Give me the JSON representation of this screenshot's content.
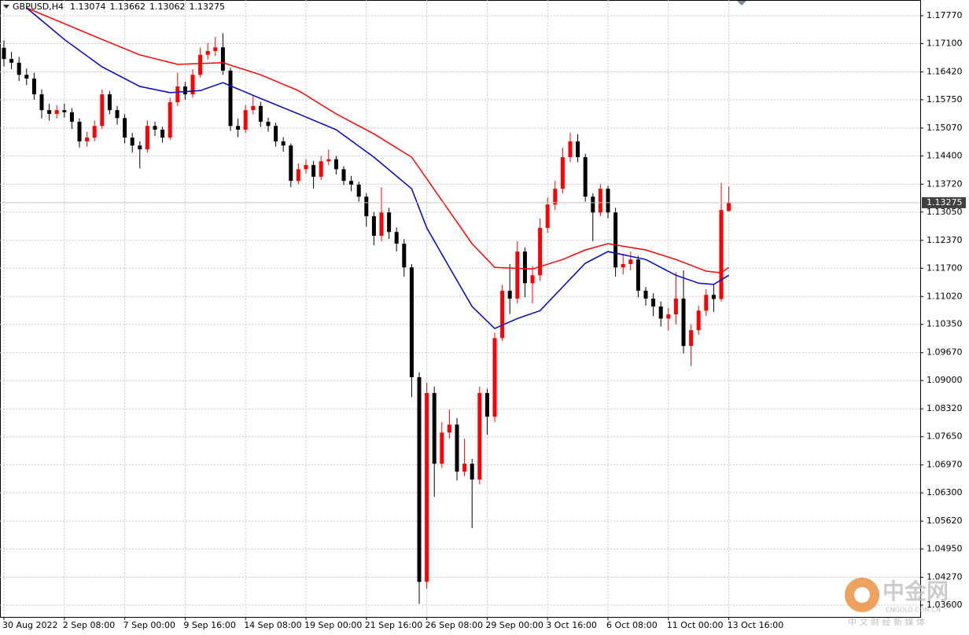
{
  "chart_data": {
    "type": "candlestick",
    "symbol": "GBPUSD,H4",
    "ylim": [
      1.03317,
      1.18148
    ],
    "yticks": [
      {
        "value": 1.1777,
        "label": "1.17770"
      },
      {
        "value": 1.171,
        "label": "1.17100"
      },
      {
        "value": 1.1642,
        "label": "1.16420"
      },
      {
        "value": 1.1575,
        "label": "1.15750"
      },
      {
        "value": 1.1507,
        "label": "1.15070"
      },
      {
        "value": 1.144,
        "label": "1.14400"
      },
      {
        "value": 1.1372,
        "label": "1.13720"
      },
      {
        "value": 1.1305,
        "label": "1.13050"
      },
      {
        "value": 1.1237,
        "label": "1.12370"
      },
      {
        "value": 1.117,
        "label": "1.11700"
      },
      {
        "value": 1.1102,
        "label": "1.11020"
      },
      {
        "value": 1.1035,
        "label": "1.10350"
      },
      {
        "value": 1.0967,
        "label": "1.09670"
      },
      {
        "value": 1.09,
        "label": "1.09000"
      },
      {
        "value": 1.0832,
        "label": "1.08320"
      },
      {
        "value": 1.0765,
        "label": "1.07650"
      },
      {
        "value": 1.0697,
        "label": "1.06970"
      },
      {
        "value": 1.063,
        "label": "1.06300"
      },
      {
        "value": 1.0562,
        "label": "1.05620"
      },
      {
        "value": 1.0495,
        "label": "1.04950"
      },
      {
        "value": 1.0427,
        "label": "1.04270"
      },
      {
        "value": 1.036,
        "label": "1.03600"
      }
    ],
    "grid": true,
    "up_color": "#ff0000",
    "down_color": "#000000",
    "categories": [
      "30 Aug 2022",
      null,
      null,
      null,
      null,
      null,
      null,
      null,
      "2 Sep 08:00",
      null,
      null,
      null,
      null,
      null,
      null,
      null,
      "7 Sep 00:00",
      null,
      null,
      null,
      null,
      null,
      null,
      null,
      "9 Sep 16:00",
      null,
      null,
      null,
      null,
      null,
      null,
      null,
      "14 Sep 08:00",
      null,
      null,
      null,
      null,
      null,
      null,
      null,
      "19 Sep 00:00",
      null,
      null,
      null,
      null,
      null,
      null,
      null,
      "21 Sep 16:00",
      null,
      null,
      null,
      null,
      null,
      null,
      null,
      "26 Sep 08:00",
      null,
      null,
      null,
      null,
      null,
      null,
      null,
      "29 Sep 00:00",
      null,
      null,
      null,
      null,
      null,
      null,
      null,
      "3 Oct 16:00",
      null,
      null,
      null,
      null,
      null,
      null,
      null,
      "6 Oct 08:00",
      null,
      null,
      null,
      null,
      null,
      null,
      null,
      "11 Oct 00:00",
      null,
      null,
      null,
      null,
      null,
      null,
      null,
      "13 Oct 16:00"
    ],
    "open": [
      1.17,
      1.1673,
      1.1664,
      1.1635,
      1.1626,
      1.1588,
      1.155,
      1.1541,
      1.155,
      1.1545,
      1.1522,
      1.1475,
      1.1484,
      1.1512,
      1.1588,
      1.155,
      1.1531,
      1.1484,
      1.1465,
      1.1456,
      1.1512,
      1.1503,
      1.1484,
      1.1569,
      1.1607,
      1.1588,
      1.1635,
      1.1683,
      1.1692,
      1.1701,
      1.1645,
      1.1512,
      1.1503,
      1.155,
      1.156,
      1.1522,
      1.1512,
      1.1475,
      1.1465,
      1.138,
      1.1408,
      1.1418,
      1.139,
      1.1427,
      1.1432,
      1.1408,
      1.138,
      1.1371,
      1.1342,
      1.1295,
      1.1248,
      1.1304,
      1.1257,
      1.1229,
      1.1172,
      1.0908,
      1.0416,
      1.087,
      1.07,
      1.0775,
      1.0794,
      1.0681,
      1.07,
      1.0662,
      1.087,
      1.0813,
      1.1002,
      1.1116,
      1.1097,
      1.121,
      1.1134,
      1.1153,
      1.1267,
      1.1323,
      1.1361,
      1.1437,
      1.1475,
      1.1437,
      1.1342,
      1.1304,
      1.1361,
      1.1304,
      1.1172,
      1.118,
      1.1191,
      1.1116,
      1.1097,
      1.1078,
      1.1049,
      1.1059,
      1.1097,
      1.0983,
      1.1021,
      1.1068,
      1.1106,
      1.1096,
      1.13074
    ],
    "high": [
      1.1718,
      1.169,
      1.1678,
      1.165,
      1.164,
      1.16,
      1.1565,
      1.1562,
      1.1566,
      1.1555,
      1.153,
      1.1498,
      1.1525,
      1.16,
      1.1596,
      1.156,
      1.154,
      1.1495,
      1.1475,
      1.1525,
      1.1522,
      1.151,
      1.158,
      1.164,
      1.1618,
      1.1648,
      1.17,
      1.1712,
      1.1726,
      1.1735,
      1.1652,
      1.153,
      1.1562,
      1.1585,
      1.157,
      1.1532,
      1.152,
      1.1485,
      1.147,
      1.1422,
      1.1432,
      1.1428,
      1.144,
      1.1455,
      1.144,
      1.1415,
      1.1392,
      1.1378,
      1.135,
      1.1305,
      1.1365,
      1.1315,
      1.1268,
      1.124,
      1.118,
      1.092,
      1.0895,
      1.0885,
      1.08,
      1.083,
      1.081,
      1.076,
      1.0712,
      1.0885,
      1.088,
      1.1015,
      1.113,
      1.118,
      1.1235,
      1.122,
      1.1175,
      1.129,
      1.134,
      1.138,
      1.146,
      1.1495,
      1.1492,
      1.1445,
      1.135,
      1.1372,
      1.1368,
      1.1315,
      1.1205,
      1.121,
      1.12,
      1.1125,
      1.111,
      1.109,
      1.1075,
      1.116,
      1.1165,
      1.1035,
      1.108,
      1.112,
      1.113,
      1.1375,
      1.13662
    ],
    "low": [
      1.1655,
      1.1648,
      1.162,
      1.161,
      1.1575,
      1.153,
      1.1525,
      1.153,
      1.1532,
      1.1505,
      1.146,
      1.1462,
      1.1475,
      1.1505,
      1.154,
      1.1515,
      1.147,
      1.1448,
      1.141,
      1.1448,
      1.1488,
      1.1472,
      1.1478,
      1.156,
      1.1575,
      1.158,
      1.1628,
      1.1672,
      1.168,
      1.1635,
      1.15,
      1.1485,
      1.1495,
      1.154,
      1.151,
      1.1498,
      1.1462,
      1.145,
      1.1365,
      1.1372,
      1.1398,
      1.1362,
      1.1382,
      1.1418,
      1.1395,
      1.137,
      1.1355,
      1.133,
      1.127,
      1.1225,
      1.1235,
      1.124,
      1.121,
      1.115,
      1.086,
      1.0363,
      1.04,
      1.062,
      1.069,
      1.076,
      1.066,
      1.067,
      1.0545,
      1.065,
      1.077,
      1.08,
      1.0995,
      1.106,
      1.1085,
      1.11,
      1.1085,
      1.114,
      1.1255,
      1.131,
      1.135,
      1.1425,
      1.1425,
      1.133,
      1.1235,
      1.1295,
      1.129,
      1.115,
      1.1155,
      1.1165,
      1.11,
      1.108,
      1.1055,
      1.103,
      1.102,
      1.1035,
      1.0965,
      1.0935,
      1.101,
      1.1055,
      1.1065,
      1.109,
      1.13062
    ],
    "close": [
      1.1673,
      1.1664,
      1.1635,
      1.1626,
      1.1588,
      1.155,
      1.1541,
      1.155,
      1.1545,
      1.1522,
      1.1475,
      1.1484,
      1.1512,
      1.1588,
      1.155,
      1.1531,
      1.1484,
      1.1465,
      1.1456,
      1.1512,
      1.1503,
      1.1484,
      1.1569,
      1.1607,
      1.1588,
      1.1635,
      1.1683,
      1.1692,
      1.1701,
      1.1645,
      1.1512,
      1.1503,
      1.155,
      1.156,
      1.1522,
      1.1512,
      1.1475,
      1.1465,
      1.138,
      1.1408,
      1.1418,
      1.139,
      1.1427,
      1.1432,
      1.1408,
      1.138,
      1.1371,
      1.1342,
      1.1295,
      1.1248,
      1.1304,
      1.1257,
      1.1229,
      1.1172,
      1.0908,
      1.0416,
      1.087,
      1.07,
      1.0775,
      1.0794,
      1.0681,
      1.07,
      1.0662,
      1.087,
      1.0813,
      1.1002,
      1.1116,
      1.1097,
      1.121,
      1.1134,
      1.1153,
      1.1267,
      1.1323,
      1.1361,
      1.1437,
      1.1475,
      1.1437,
      1.1342,
      1.1304,
      1.1361,
      1.1304,
      1.1172,
      1.118,
      1.1191,
      1.1116,
      1.1097,
      1.1078,
      1.1049,
      1.1059,
      1.1097,
      1.0983,
      1.1021,
      1.1068,
      1.1106,
      1.1096,
      1.131,
      1.13275
    ],
    "series": [
      {
        "color": "#ff0000",
        "x": [
          3,
          8,
          13,
          18,
          23,
          29,
          34,
          39,
          44,
          49,
          54,
          58,
          62,
          65,
          70,
          74,
          77,
          80,
          85,
          89,
          93,
          95,
          96
        ],
        "values": [
          1.1796,
          1.1758,
          1.172,
          1.1683,
          1.166,
          1.1664,
          1.1635,
          1.1597,
          1.1541,
          1.1493,
          1.1437,
          1.1333,
          1.1229,
          1.1172,
          1.1168,
          1.1191,
          1.1214,
          1.1229,
          1.1214,
          1.1191,
          1.1163,
          1.1159,
          1.1172
        ]
      },
      {
        "color": "#0000cc",
        "x": [
          3,
          8,
          13,
          18,
          22,
          26,
          29,
          34,
          39,
          44,
          49,
          54,
          56,
          59,
          62,
          65,
          68,
          71,
          74,
          77,
          80,
          85,
          89,
          92,
          94,
          96
        ],
        "values": [
          1.1796,
          1.172,
          1.1654,
          1.1607,
          1.1592,
          1.1597,
          1.1616,
          1.1578,
          1.1541,
          1.1503,
          1.1437,
          1.1361,
          1.1267,
          1.1172,
          1.1078,
          1.1025,
          1.1049,
          1.1068,
          1.1125,
          1.1182,
          1.121,
          1.1191,
          1.1153,
          1.1134,
          1.1131,
          1.1153
        ]
      }
    ],
    "watermark": {
      "name": "中金网",
      "domain": "CNGOLD.COM.CN",
      "slogan": "中 文 财 经 新 媒 体"
    }
  }
}
